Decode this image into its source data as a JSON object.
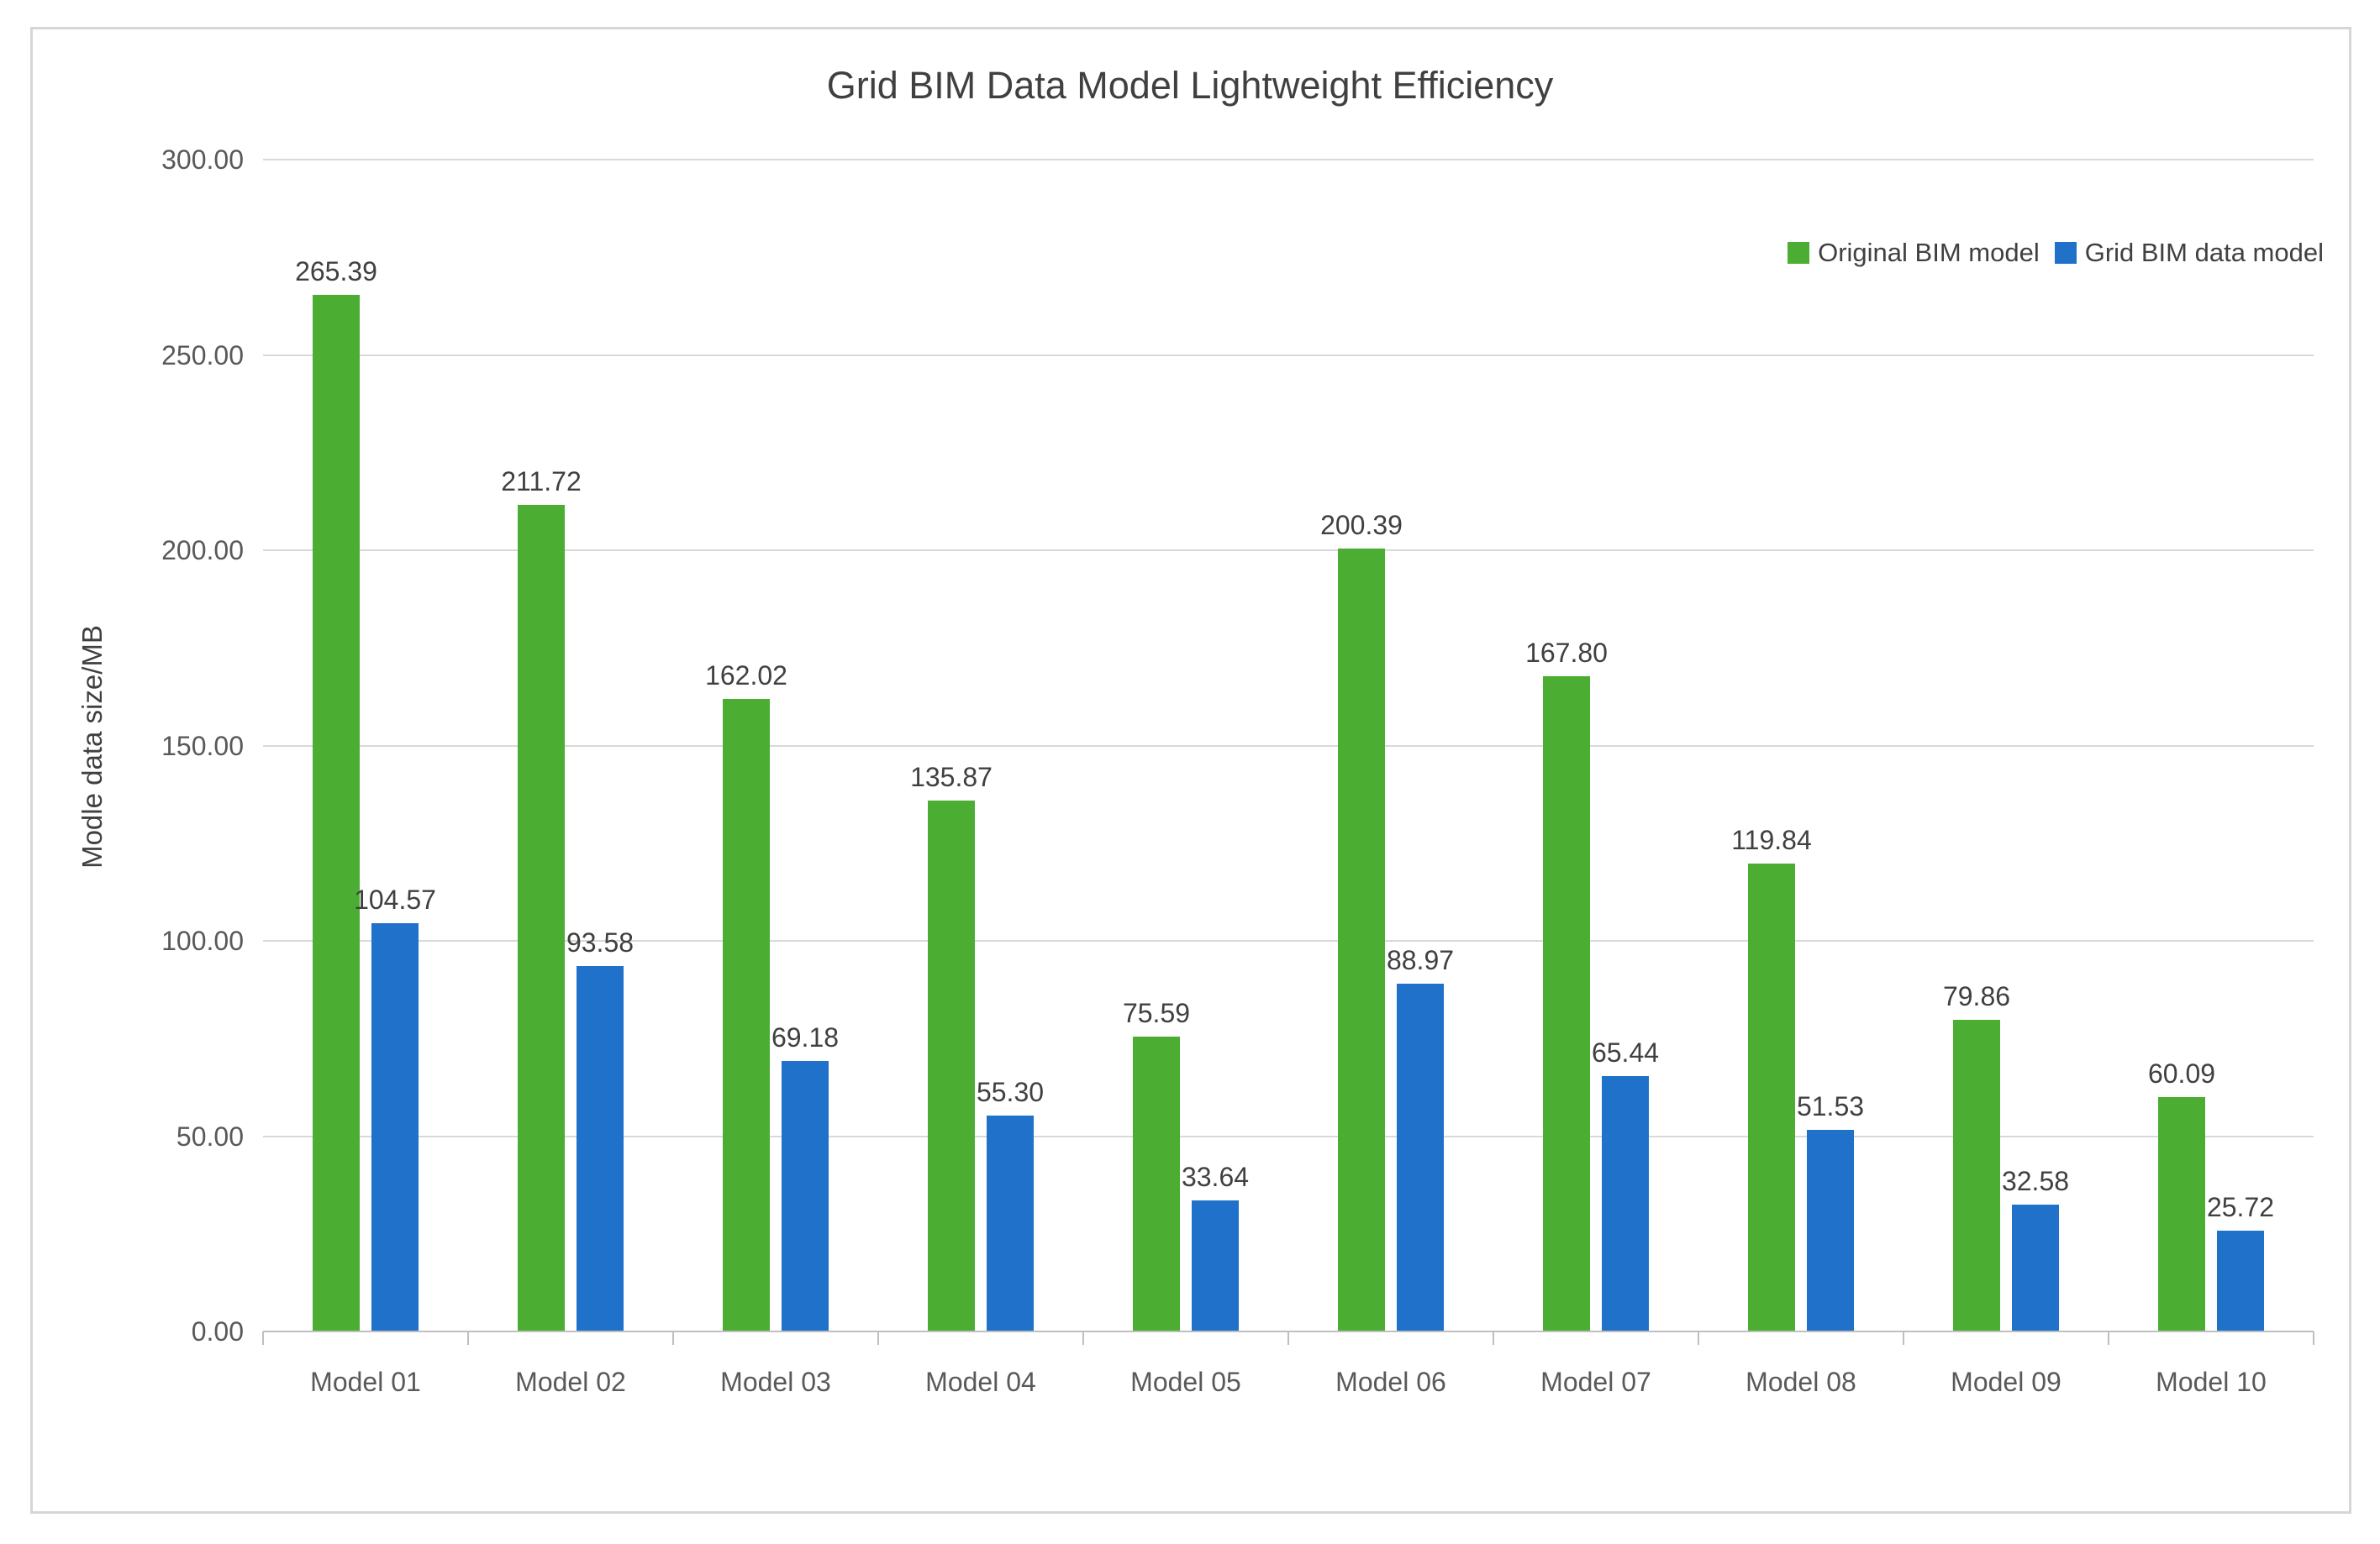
{
  "chart_data": {
    "type": "bar",
    "title": "Grid BIM Data Model Lightweight Efficiency",
    "xlabel": "",
    "ylabel": "Modle data size/MB",
    "categories": [
      "Model 01",
      "Model 02",
      "Model 03",
      "Model 04",
      "Model 05",
      "Model 06",
      "Model 07",
      "Model 08",
      "Model 09",
      "Model 10"
    ],
    "series": [
      {
        "name": "Original BIM model",
        "color": "#4BAE32",
        "values": [
          265.39,
          211.72,
          162.02,
          135.87,
          75.59,
          200.39,
          167.8,
          119.84,
          79.86,
          60.09
        ]
      },
      {
        "name": "Grid BIM data model",
        "color": "#1F71C9",
        "values": [
          104.57,
          93.58,
          69.18,
          55.3,
          33.64,
          88.97,
          65.44,
          51.53,
          32.58,
          25.72
        ]
      }
    ],
    "ylim": [
      0,
      300
    ],
    "yticks": [
      0,
      50,
      100,
      150,
      200,
      250,
      300
    ],
    "ytick_labels": [
      "0.00",
      "50.00",
      "100.00",
      "150.00",
      "200.00",
      "250.00",
      "300.00"
    ],
    "grid": true,
    "legend_position": "top-right",
    "value_labels": true
  },
  "styles": {
    "gridline_color": "#D9D9D9",
    "axis_color": "#BFBFBF",
    "title_color": "#404040",
    "tick_text_color": "#595959",
    "value_label_color": "#404040",
    "frame_border_color": "#D6D6D6",
    "background": "#FFFFFF"
  }
}
